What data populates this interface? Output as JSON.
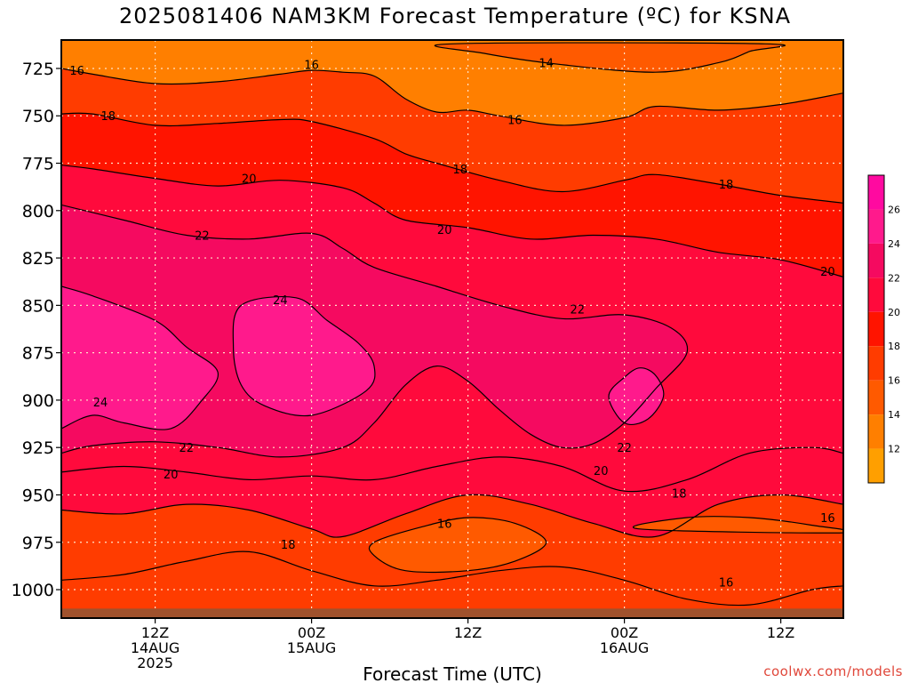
{
  "header": {
    "title": "2025081406 NAM3KM Forecast Temperature (ºC) for KSNA"
  },
  "footer": {
    "credit": "coolwx.com/models"
  },
  "chart_data": {
    "type": "heatmap",
    "title": "2025081406 NAM3KM Forecast Temperature (ºC) for KSNA",
    "xlabel": "Forecast Time (UTC)",
    "ylabel": "",
    "x_unit": "forecast hour",
    "xlim": [
      6,
      56
    ],
    "ylim": [
      1015,
      710
    ],
    "y_ticks": [
      725,
      750,
      775,
      800,
      825,
      850,
      875,
      900,
      925,
      950,
      975,
      1000
    ],
    "x_ticks": [
      {
        "x": 12,
        "lines": [
          "12Z",
          "14AUG",
          "2025"
        ]
      },
      {
        "x": 22,
        "lines": [
          "00Z",
          "15AUG"
        ]
      },
      {
        "x": 32,
        "lines": [
          "12Z"
        ]
      },
      {
        "x": 42,
        "lines": [
          "00Z",
          "16AUG"
        ]
      },
      {
        "x": 52,
        "lines": [
          "12Z"
        ]
      }
    ],
    "grid": true,
    "ground_level": 1010,
    "ground_color": "#a0522d",
    "levels": [
      12,
      14,
      16,
      18,
      20,
      22,
      24,
      26
    ],
    "colors": [
      "#ff9f00",
      "#ff7f00",
      "#ff5a00",
      "#ff3c00",
      "#ff1400",
      "#ff0a3c",
      "#f50a60",
      "#ff1a8c",
      "#ff0aa0"
    ],
    "colorbar_labels": [
      "12",
      "14",
      "16",
      "18",
      "20",
      "22",
      "24",
      "26"
    ],
    "series": [
      {
        "level": 14,
        "points": [
          [
            31,
            712
          ],
          [
            33,
            717
          ],
          [
            38,
            723
          ],
          [
            44,
            727
          ],
          [
            48,
            722
          ],
          [
            50,
            716
          ],
          [
            51,
            712
          ]
        ]
      },
      {
        "level": 16,
        "points": [
          [
            6,
            725
          ],
          [
            8,
            728
          ],
          [
            12,
            733
          ],
          [
            16,
            732
          ],
          [
            20,
            728
          ],
          [
            22,
            726
          ],
          [
            24,
            727
          ],
          [
            26,
            729
          ],
          [
            28,
            741
          ],
          [
            30,
            748
          ],
          [
            32,
            747
          ],
          [
            34,
            750
          ],
          [
            38,
            755
          ],
          [
            42,
            751
          ],
          [
            44,
            745
          ],
          [
            48,
            747
          ],
          [
            52,
            744
          ],
          [
            56,
            738
          ]
        ]
      },
      {
        "level": 18,
        "points": [
          [
            6,
            749
          ],
          [
            8,
            749
          ],
          [
            12,
            755
          ],
          [
            16,
            754
          ],
          [
            20,
            752
          ],
          [
            22,
            753
          ],
          [
            26,
            762
          ],
          [
            28,
            770
          ],
          [
            30,
            775
          ],
          [
            34,
            784
          ],
          [
            38,
            790
          ],
          [
            42,
            784
          ],
          [
            44,
            781
          ],
          [
            48,
            786
          ],
          [
            52,
            792
          ],
          [
            56,
            796
          ]
        ]
      },
      {
        "level": 20,
        "points": [
          [
            6,
            776
          ],
          [
            8,
            778
          ],
          [
            12,
            783
          ],
          [
            16,
            787
          ],
          [
            20,
            784
          ],
          [
            24,
            788
          ],
          [
            26,
            796
          ],
          [
            28,
            805
          ],
          [
            32,
            809
          ],
          [
            36,
            815
          ],
          [
            40,
            813
          ],
          [
            44,
            815
          ],
          [
            48,
            822
          ],
          [
            52,
            826
          ],
          [
            56,
            835
          ]
        ]
      },
      {
        "level": 22,
        "points": [
          [
            6,
            797
          ],
          [
            10,
            805
          ],
          [
            14,
            813
          ],
          [
            18,
            815
          ],
          [
            22,
            812
          ],
          [
            24,
            820
          ],
          [
            26,
            830
          ],
          [
            30,
            840
          ],
          [
            34,
            850
          ],
          [
            38,
            857
          ],
          [
            42,
            855
          ],
          [
            45,
            862
          ],
          [
            46,
            875
          ],
          [
            44,
            894
          ],
          [
            42,
            912
          ],
          [
            40,
            923
          ],
          [
            38,
            925
          ],
          [
            36,
            918
          ],
          [
            34,
            905
          ],
          [
            32,
            890
          ],
          [
            30,
            882
          ],
          [
            28,
            892
          ],
          [
            26,
            912
          ],
          [
            24,
            925
          ],
          [
            20,
            930
          ],
          [
            16,
            925
          ],
          [
            12,
            922
          ],
          [
            8,
            924
          ],
          [
            6,
            928
          ]
        ]
      },
      {
        "level": 24,
        "points": [
          [
            6,
            840
          ],
          [
            8,
            845
          ],
          [
            12,
            858
          ],
          [
            14,
            872
          ],
          [
            16,
            885
          ],
          [
            15,
            900
          ],
          [
            13,
            915
          ],
          [
            10,
            912
          ],
          [
            8,
            908
          ],
          [
            6,
            915
          ]
        ]
      },
      {
        "level": 24,
        "points": [
          [
            17.5,
            850
          ],
          [
            21,
            846
          ],
          [
            23,
            858
          ],
          [
            25,
            870
          ],
          [
            26,
            882
          ],
          [
            25.5,
            895
          ],
          [
            22,
            908
          ],
          [
            19,
            903
          ],
          [
            17.5,
            892
          ],
          [
            17,
            872
          ]
        ]
      },
      {
        "level": 24,
        "points": [
          [
            41,
            898
          ],
          [
            42,
            888
          ],
          [
            43,
            883
          ],
          [
            44,
            887
          ],
          [
            44.5,
            898
          ],
          [
            43.5,
            910
          ],
          [
            42,
            912
          ]
        ]
      },
      {
        "level": 20,
        "points": [
          [
            6,
            938
          ],
          [
            10,
            935
          ],
          [
            14,
            938
          ],
          [
            18,
            942
          ],
          [
            22,
            940
          ],
          [
            26,
            942
          ],
          [
            30,
            935
          ],
          [
            34,
            930
          ],
          [
            38,
            935
          ],
          [
            42,
            948
          ],
          [
            46,
            942
          ],
          [
            50,
            928
          ],
          [
            54,
            925
          ],
          [
            56,
            928
          ]
        ]
      },
      {
        "level": 18,
        "points": [
          [
            6,
            958
          ],
          [
            10,
            960
          ],
          [
            14,
            955
          ],
          [
            18,
            958
          ],
          [
            22,
            968
          ],
          [
            24,
            972
          ],
          [
            28,
            960
          ],
          [
            32,
            950
          ],
          [
            36,
            955
          ],
          [
            40,
            965
          ],
          [
            44,
            972
          ],
          [
            48,
            955
          ],
          [
            52,
            950
          ],
          [
            56,
            955
          ]
        ]
      },
      {
        "level": 16,
        "points": [
          [
            26,
            975
          ],
          [
            29,
            967
          ],
          [
            32,
            962
          ],
          [
            35,
            965
          ],
          [
            37,
            975
          ],
          [
            35,
            985
          ],
          [
            32,
            990
          ],
          [
            28,
            990
          ],
          [
            26,
            982
          ]
        ]
      },
      {
        "level": 16,
        "points": [
          [
            43,
            968
          ],
          [
            46,
            962
          ],
          [
            50,
            962
          ],
          [
            54,
            966
          ],
          [
            56,
            970
          ]
        ]
      },
      {
        "level": 18,
        "points": [
          [
            6,
            995
          ],
          [
            10,
            992
          ],
          [
            14,
            985
          ],
          [
            18,
            980
          ],
          [
            22,
            990
          ],
          [
            26,
            998
          ],
          [
            30,
            995
          ],
          [
            34,
            990
          ],
          [
            38,
            988
          ],
          [
            42,
            995
          ],
          [
            46,
            1005
          ],
          [
            50,
            1008
          ],
          [
            54,
            1000
          ],
          [
            56,
            998
          ]
        ]
      }
    ],
    "labels": [
      {
        "text": "16",
        "x": 7,
        "y": 726
      },
      {
        "text": "16",
        "x": 22,
        "y": 723
      },
      {
        "text": "14",
        "x": 37,
        "y": 722
      },
      {
        "text": "18",
        "x": 9,
        "y": 750
      },
      {
        "text": "16",
        "x": 35,
        "y": 752
      },
      {
        "text": "20",
        "x": 18,
        "y": 783
      },
      {
        "text": "18",
        "x": 31.5,
        "y": 778
      },
      {
        "text": "18",
        "x": 48.5,
        "y": 786
      },
      {
        "text": "22",
        "x": 15,
        "y": 813
      },
      {
        "text": "20",
        "x": 30.5,
        "y": 810
      },
      {
        "text": "20",
        "x": 55,
        "y": 832
      },
      {
        "text": "24",
        "x": 20,
        "y": 847
      },
      {
        "text": "22",
        "x": 39,
        "y": 852
      },
      {
        "text": "24",
        "x": 8.5,
        "y": 901
      },
      {
        "text": "22",
        "x": 14,
        "y": 925
      },
      {
        "text": "22",
        "x": 42,
        "y": 925
      },
      {
        "text": "20",
        "x": 13,
        "y": 939
      },
      {
        "text": "20",
        "x": 40.5,
        "y": 937
      },
      {
        "text": "18",
        "x": 45.5,
        "y": 949
      },
      {
        "text": "16",
        "x": 55,
        "y": 962
      },
      {
        "text": "16",
        "x": 30.5,
        "y": 965
      },
      {
        "text": "18",
        "x": 20.5,
        "y": 976
      },
      {
        "text": "16",
        "x": 48.5,
        "y": 996
      }
    ]
  }
}
